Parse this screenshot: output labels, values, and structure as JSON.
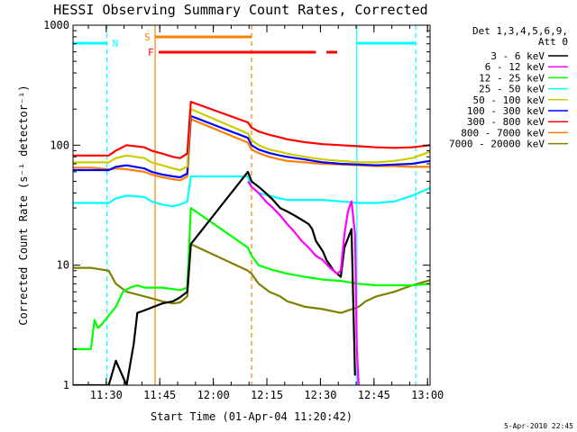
{
  "chart_data": {
    "type": "line",
    "title": "HESSI Observing Summary Count Rates, Corrected",
    "xlabel": "Start Time (01-Apr-04 11:20:42)",
    "ylabel": "Corrected Count Rate (s⁻¹ detector⁻¹)",
    "x_tick_labels": [
      "11:30",
      "11:45",
      "12:00",
      "12:15",
      "12:30",
      "12:45",
      "13:00"
    ],
    "x_ticks_min": [
      9.3,
      24.3,
      39.3,
      54.3,
      69.3,
      84.3,
      99.3
    ],
    "xlim_min": [
      0,
      100
    ],
    "y_tick_labels": [
      "1",
      "10",
      "100",
      "1000"
    ],
    "y_ticks": [
      1,
      10,
      100,
      1000
    ],
    "ylim": [
      1,
      1000
    ],
    "y_scale": "log",
    "legend_header": [
      "Det 1,3,4,5,6,9,",
      "Att 0"
    ],
    "legend_position": "right",
    "footer": "5-Apr-2010 22:45",
    "series": [
      {
        "name": "3 - 6 keV",
        "color": "#000000",
        "x": [
          0,
          5,
          10,
          12,
          15,
          17,
          18,
          20,
          25,
          28,
          30,
          32,
          33,
          49,
          50,
          52,
          54,
          56,
          58,
          60,
          62,
          64,
          66,
          67,
          68,
          70,
          71,
          72,
          73,
          74,
          75,
          76,
          78,
          79
        ],
        "values": [
          1,
          1,
          1,
          1.6,
          1,
          2.2,
          4,
          4.2,
          4.8,
          5,
          5.4,
          6,
          15,
          60,
          50,
          45,
          40,
          35,
          30,
          28,
          26,
          24,
          22,
          20,
          16,
          13,
          11,
          10,
          9,
          8.5,
          8,
          14,
          20,
          1.2
        ]
      },
      {
        "name": "6 - 12 keV",
        "color": "#ff00ff",
        "x": [
          49,
          50,
          52,
          54,
          56,
          58,
          60,
          62,
          64,
          66,
          68,
          70,
          72,
          74,
          75,
          76,
          77,
          78,
          79,
          79.5,
          80
        ],
        "values": [
          50,
          45,
          40,
          34,
          30,
          26,
          22,
          19,
          16,
          14,
          12,
          11,
          9.5,
          8.5,
          9,
          18,
          28,
          34,
          18,
          2,
          1
        ]
      },
      {
        "name": "12 - 25 keV",
        "color": "#00ff00",
        "x": [
          0,
          5,
          6,
          7,
          8,
          12,
          14,
          16,
          18,
          20,
          25,
          30,
          32,
          33,
          49,
          50,
          52,
          55,
          60,
          65,
          70,
          75,
          80,
          85,
          90,
          95,
          100
        ],
        "values": [
          2,
          2,
          3.5,
          3,
          3.2,
          4.5,
          6,
          6.5,
          6.8,
          6.5,
          6.5,
          6.2,
          6.5,
          30,
          14,
          12,
          10,
          9.3,
          8.5,
          8,
          7.6,
          7.4,
          7,
          6.8,
          6.8,
          6.8,
          7
        ]
      },
      {
        "name": "25 - 50 keV",
        "color": "#00ffff",
        "x": [
          0,
          5,
          10,
          12,
          15,
          20,
          22,
          25,
          28,
          30,
          32,
          33,
          49,
          50,
          52,
          55,
          58,
          60,
          65,
          70,
          75,
          80,
          85,
          90,
          95,
          100
        ],
        "values": [
          33,
          33,
          33,
          36,
          38,
          37,
          34,
          32,
          31,
          32,
          34,
          55,
          55,
          45,
          40,
          38,
          36,
          35,
          35,
          35,
          34,
          33,
          33,
          34,
          38,
          44
        ]
      },
      {
        "name": "50 - 100 keV",
        "color": "#cccc00",
        "x": [
          0,
          5,
          10,
          12,
          15,
          20,
          22,
          25,
          28,
          30,
          32,
          33,
          49,
          50,
          52,
          55,
          58,
          60,
          65,
          70,
          75,
          80,
          85,
          90,
          95,
          100
        ],
        "values": [
          72,
          72,
          72,
          78,
          82,
          78,
          72,
          68,
          64,
          62,
          66,
          200,
          125,
          110,
          100,
          92,
          88,
          85,
          80,
          76,
          74,
          72,
          72,
          74,
          78,
          88
        ]
      },
      {
        "name": "100 - 300 keV",
        "color": "#0000ff",
        "x": [
          0,
          5,
          10,
          12,
          15,
          20,
          22,
          25,
          28,
          30,
          32,
          33,
          49,
          50,
          52,
          55,
          58,
          60,
          65,
          70,
          75,
          80,
          85,
          90,
          95,
          100
        ],
        "values": [
          62,
          62,
          62,
          66,
          68,
          64,
          60,
          57,
          55,
          54,
          58,
          175,
          115,
          100,
          92,
          86,
          82,
          80,
          76,
          72,
          70,
          69,
          68,
          69,
          70,
          74
        ]
      },
      {
        "name": "300 - 800 keV",
        "color": "#ff0000",
        "x": [
          0,
          5,
          10,
          12,
          15,
          20,
          22,
          25,
          28,
          30,
          32,
          33,
          49,
          50,
          52,
          55,
          58,
          60,
          65,
          70,
          75,
          80,
          85,
          90,
          95,
          100
        ],
        "values": [
          82,
          82,
          82,
          90,
          100,
          96,
          90,
          85,
          80,
          78,
          85,
          230,
          155,
          140,
          130,
          122,
          116,
          112,
          106,
          102,
          100,
          98,
          96,
          95,
          96,
          100
        ]
      },
      {
        "name": "800 - 7000 keV",
        "color": "#ff8000",
        "x": [
          0,
          5,
          10,
          12,
          15,
          20,
          22,
          25,
          28,
          30,
          32,
          33,
          49,
          50,
          52,
          55,
          58,
          60,
          65,
          70,
          75,
          80,
          85,
          90,
          95,
          100
        ],
        "values": [
          65,
          65,
          63,
          64,
          63,
          60,
          57,
          54,
          52,
          51,
          55,
          165,
          105,
          92,
          86,
          80,
          76,
          74,
          72,
          70,
          69,
          68,
          67,
          67,
          66,
          66
        ]
      },
      {
        "name": "7000 - 20000 keV",
        "color": "#808000",
        "x": [
          0,
          5,
          10,
          12,
          15,
          20,
          22,
          25,
          28,
          30,
          32,
          33,
          49,
          50,
          52,
          55,
          58,
          60,
          62,
          65,
          70,
          75,
          80,
          82,
          85,
          90,
          95,
          100
        ],
        "values": [
          9.5,
          9.5,
          9,
          7,
          6,
          5.5,
          5.3,
          5,
          4.8,
          4.9,
          5.5,
          15,
          9,
          8.5,
          7,
          6,
          5.5,
          5,
          4.8,
          4.5,
          4.3,
          4,
          4.5,
          5,
          5.5,
          6,
          6.8,
          7.5
        ]
      }
    ],
    "annotations": [
      {
        "label": "N",
        "color": "#00ffff",
        "style": "bar",
        "segments": [
          [
            0,
            9.5
          ],
          [
            79.5,
            96
          ]
        ]
      },
      {
        "label": "S",
        "color": "#ff8000",
        "style": "bar",
        "segments": [
          [
            23,
            50
          ]
        ]
      },
      {
        "label": "F",
        "color": "#ff0000",
        "style": "bar",
        "segments": [
          [
            24,
            68
          ],
          [
            71,
            74
          ]
        ]
      }
    ],
    "vertical_lines": [
      {
        "x": 9.5,
        "color": "#00ffff",
        "dash": true
      },
      {
        "x": 23,
        "color": "#ff8000",
        "dash": false
      },
      {
        "x": 50,
        "color": "#ff8000",
        "dash": true
      },
      {
        "x": 79.5,
        "color": "#00ffff",
        "dash": false
      },
      {
        "x": 96,
        "color": "#00ffff",
        "dash": true
      }
    ]
  }
}
